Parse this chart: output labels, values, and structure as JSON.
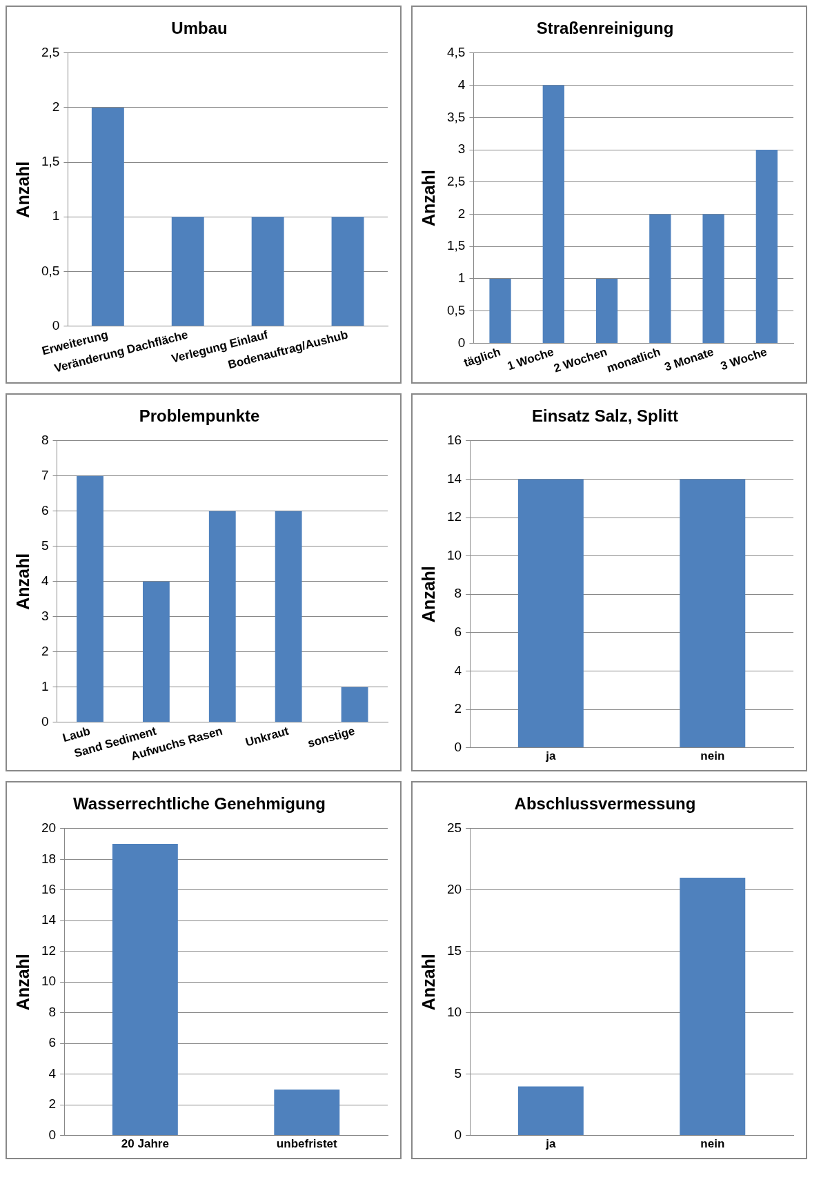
{
  "chart_data": [
    {
      "type": "bar",
      "title": "Umbau",
      "ylabel": "Anzahl",
      "categories": [
        "Erweiterung",
        "Veränderung Dachfläche",
        "Verlegung Einlauf",
        "Bodenauftrag/Aushub"
      ],
      "values": [
        2,
        1,
        1,
        1
      ],
      "color": "#4f81bd",
      "ylim": [
        0,
        2.5
      ],
      "yticks": [
        0,
        {
          "value": 0.5,
          "label": "0,5"
        },
        1,
        {
          "value": 1.5,
          "label": "1,5"
        },
        2,
        {
          "value": 2.5,
          "label": "2,5"
        }
      ],
      "grid": "y",
      "legend": false
    },
    {
      "type": "bar",
      "title": "Straßenreinigung",
      "ylabel": "Anzahl",
      "categories": [
        "täglich",
        "1 Woche",
        "2 Wochen",
        "monatlich",
        "3 Monate",
        "3 Woche"
      ],
      "values": [
        1,
        4,
        1,
        2,
        2,
        3
      ],
      "color": "#4f81bd",
      "ylim": [
        0,
        4.5
      ],
      "yticks": [
        0,
        {
          "value": 0.5,
          "label": "0,5"
        },
        1,
        {
          "value": 1.5,
          "label": "1,5"
        },
        2,
        {
          "value": 2.5,
          "label": "2,5"
        },
        3,
        {
          "value": 3.5,
          "label": "3,5"
        },
        4,
        {
          "value": 4.5,
          "label": "4,5"
        }
      ],
      "grid": "y",
      "legend": false
    },
    {
      "type": "bar",
      "title": "Problempunkte",
      "ylabel": "Anzahl",
      "categories": [
        "Laub",
        "Sand Sediment",
        "Aufwuchs Rasen",
        "Unkraut",
        "sonstige"
      ],
      "values": [
        7,
        4,
        6,
        6,
        1
      ],
      "color": "#4f81bd",
      "ylim": [
        0,
        8
      ],
      "yticks": [
        0,
        1,
        2,
        3,
        4,
        5,
        6,
        7,
        8
      ],
      "grid": "y",
      "legend": false
    },
    {
      "type": "bar",
      "title": "Einsatz Salz, Splitt",
      "ylabel": "Anzahl",
      "categories": [
        "ja",
        "nein"
      ],
      "values": [
        14,
        14
      ],
      "color": "#4f81bd",
      "ylim": [
        0,
        16
      ],
      "yticks": [
        0,
        2,
        4,
        6,
        8,
        10,
        12,
        14,
        16
      ],
      "grid": "y",
      "legend": false
    },
    {
      "type": "bar",
      "title": "Wasserrechtliche Genehmigung",
      "ylabel": "Anzahl",
      "categories": [
        "20 Jahre",
        "unbefristet"
      ],
      "values": [
        19,
        3
      ],
      "color": "#4f81bd",
      "ylim": [
        0,
        20
      ],
      "yticks": [
        0,
        2,
        4,
        6,
        8,
        10,
        12,
        14,
        16,
        18,
        20
      ],
      "grid": "y",
      "legend": false
    },
    {
      "type": "bar",
      "title": "Abschlussvermessung",
      "ylabel": "Anzahl",
      "categories": [
        "ja",
        "nein"
      ],
      "values": [
        4,
        21
      ],
      "color": "#4f81bd",
      "ylim": [
        0,
        25
      ],
      "yticks": [
        0,
        5,
        10,
        15,
        20,
        25
      ],
      "grid": "y",
      "legend": false
    }
  ]
}
